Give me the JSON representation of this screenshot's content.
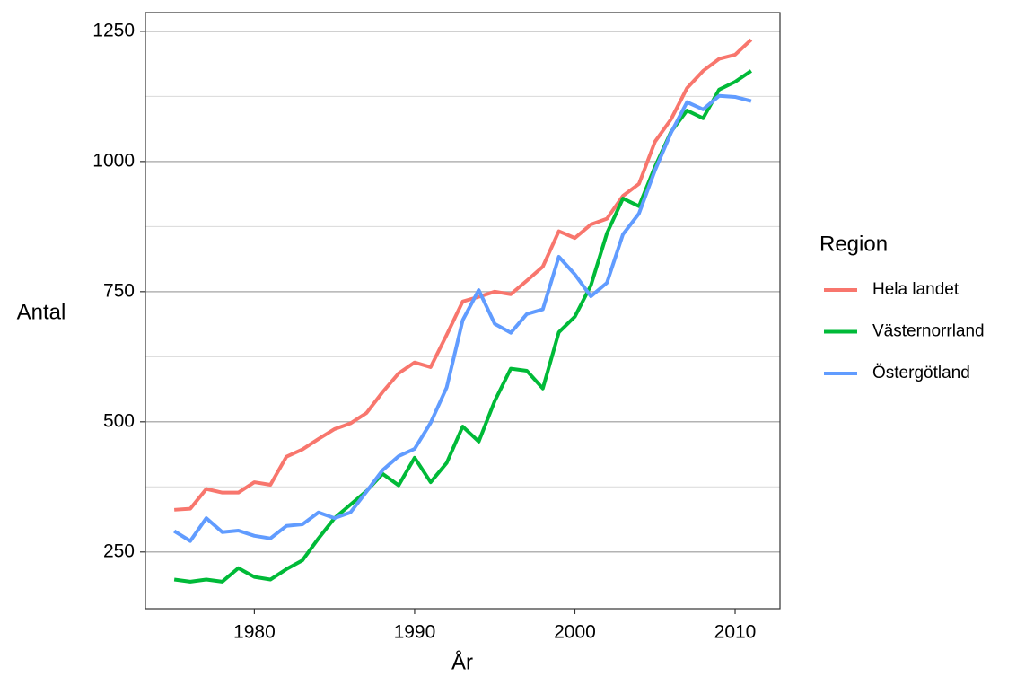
{
  "chart_data": {
    "type": "line",
    "xlabel": "År",
    "ylabel": "Antal",
    "x": [
      1975,
      1976,
      1977,
      1978,
      1979,
      1980,
      1981,
      1982,
      1983,
      1984,
      1985,
      1986,
      1987,
      1988,
      1989,
      1990,
      1991,
      1992,
      1993,
      1994,
      1995,
      1996,
      1997,
      1998,
      1999,
      2000,
      2001,
      2002,
      2003,
      2004,
      2005,
      2006,
      2007,
      2008,
      2009,
      2010,
      2011
    ],
    "series": [
      {
        "name": "Hela landet",
        "color": "#f8766d",
        "values": [
          331,
          333,
          371,
          364,
          364,
          384,
          379,
          433,
          447,
          467,
          486,
          497,
          517,
          557,
          593,
          614,
          605,
          667,
          731,
          740,
          750,
          745,
          771,
          798,
          866,
          853,
          879,
          890,
          934,
          957,
          1038,
          1081,
          1141,
          1174,
          1197,
          1205,
          1234
        ]
      },
      {
        "name": "Västernorrland",
        "color": "#00ba38",
        "values": [
          197,
          193,
          197,
          193,
          219,
          202,
          197,
          217,
          234,
          276,
          315,
          341,
          367,
          400,
          378,
          431,
          384,
          421,
          491,
          462,
          540,
          602,
          598,
          564,
          672,
          702,
          762,
          862,
          929,
          914,
          990,
          1057,
          1098,
          1083,
          1138,
          1153,
          1174
        ]
      },
      {
        "name": "Östergötland",
        "color": "#619cff",
        "values": [
          290,
          271,
          315,
          288,
          291,
          281,
          276,
          300,
          303,
          326,
          315,
          326,
          366,
          407,
          434,
          448,
          498,
          566,
          695,
          753,
          688,
          671,
          707,
          716,
          817,
          783,
          741,
          767,
          860,
          900,
          983,
          1055,
          1114,
          1100,
          1126,
          1124,
          1116
        ]
      }
    ],
    "legend_title": "Region",
    "legend": "right",
    "xlim": [
      1973.2,
      2012.8
    ],
    "xticks": [
      1980,
      1990,
      2000,
      2010
    ],
    "ylim": [
      141,
      1286
    ],
    "yticks": [
      250,
      500,
      750,
      1000,
      1250
    ],
    "yminor": [
      375,
      625,
      875,
      1125
    ],
    "grid": true
  }
}
